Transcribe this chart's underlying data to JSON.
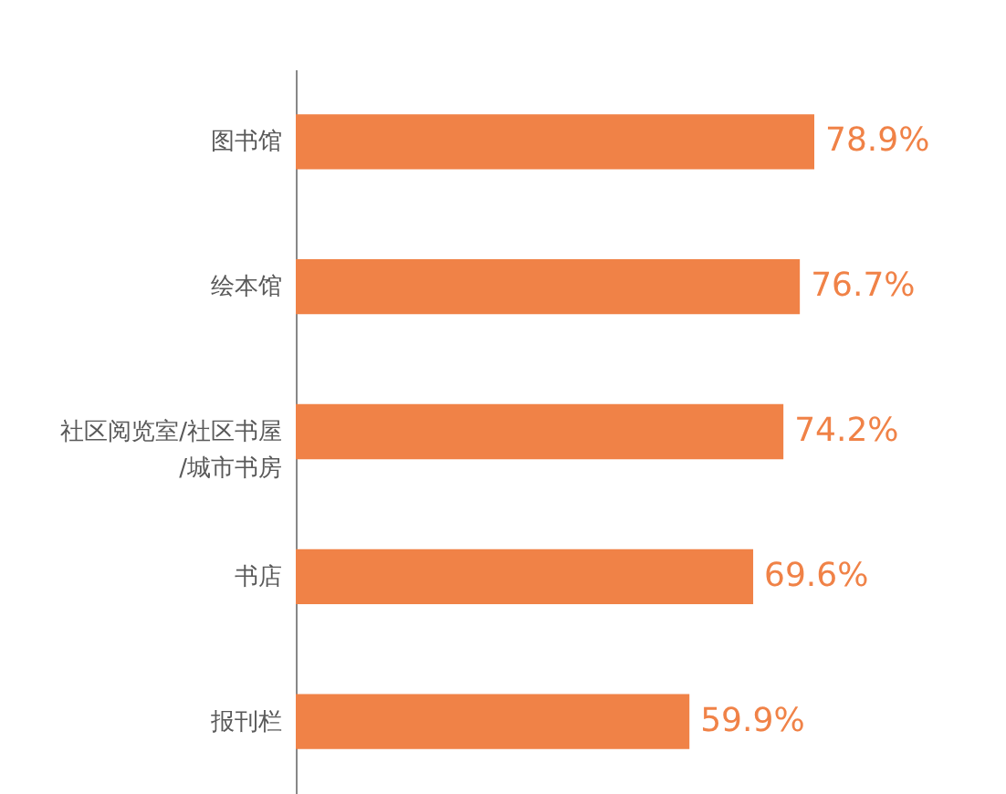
{
  "chart_data": {
    "type": "bar",
    "orientation": "horizontal",
    "categories": [
      "图书馆",
      "绘本馆",
      "社区阅览室/社区书屋\n/城市书房",
      "书店",
      "报刊栏"
    ],
    "values": [
      78.9,
      76.7,
      74.2,
      69.6,
      59.9
    ],
    "value_labels": [
      "78.9%",
      "76.7%",
      "74.2%",
      "69.6%",
      "59.9%"
    ],
    "color": "#f08247",
    "tick_labels": "y"
  }
}
